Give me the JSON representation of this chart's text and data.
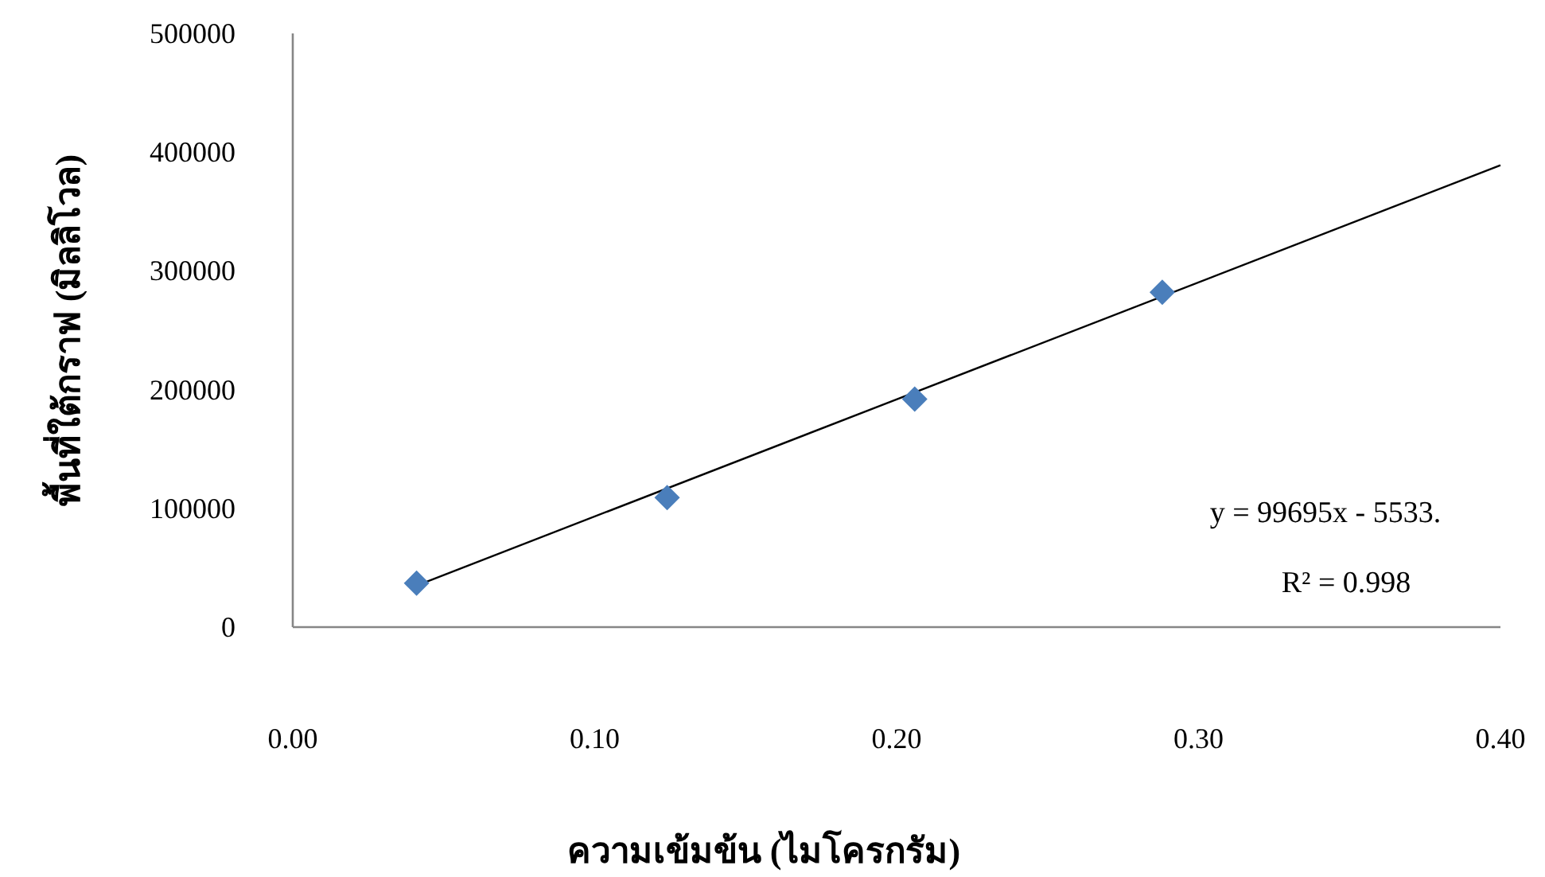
{
  "chart_data": {
    "type": "scatter",
    "xlabel": "ความเข้มข้น (ไมโครกรัม)",
    "ylabel": "พื้นที่ใต้กราฟ (มิลลิโวล)",
    "xlim": [
      0,
      0.4
    ],
    "xticks": [
      {
        "value": 0,
        "label": "0.00"
      },
      {
        "value": 0.1,
        "label": "0.10"
      },
      {
        "value": 0.2,
        "label": "0.20"
      },
      {
        "value": 0.3,
        "label": "0.30"
      },
      {
        "value": 0.4,
        "label": "0.40"
      }
    ],
    "ylim": [
      0,
      500000
    ],
    "yticks": [
      0,
      100000,
      200000,
      300000,
      400000,
      500000
    ],
    "grid": false,
    "series": [
      {
        "color": "#4a7ebb",
        "marker": "diamond",
        "x": [
          0.041,
          0.124,
          0.206,
          0.288
        ],
        "values": [
          37000,
          109000,
          192000,
          282000
        ]
      },
      {
        "type": "line",
        "color": "#000000",
        "marker": "none",
        "line_style": "solid",
        "x": [
          0.041,
          0.4
        ],
        "values": [
          35000,
          389000
        ]
      }
    ],
    "annotations": [
      "y = 99695x - 5533.",
      "R² = 0.998"
    ]
  }
}
